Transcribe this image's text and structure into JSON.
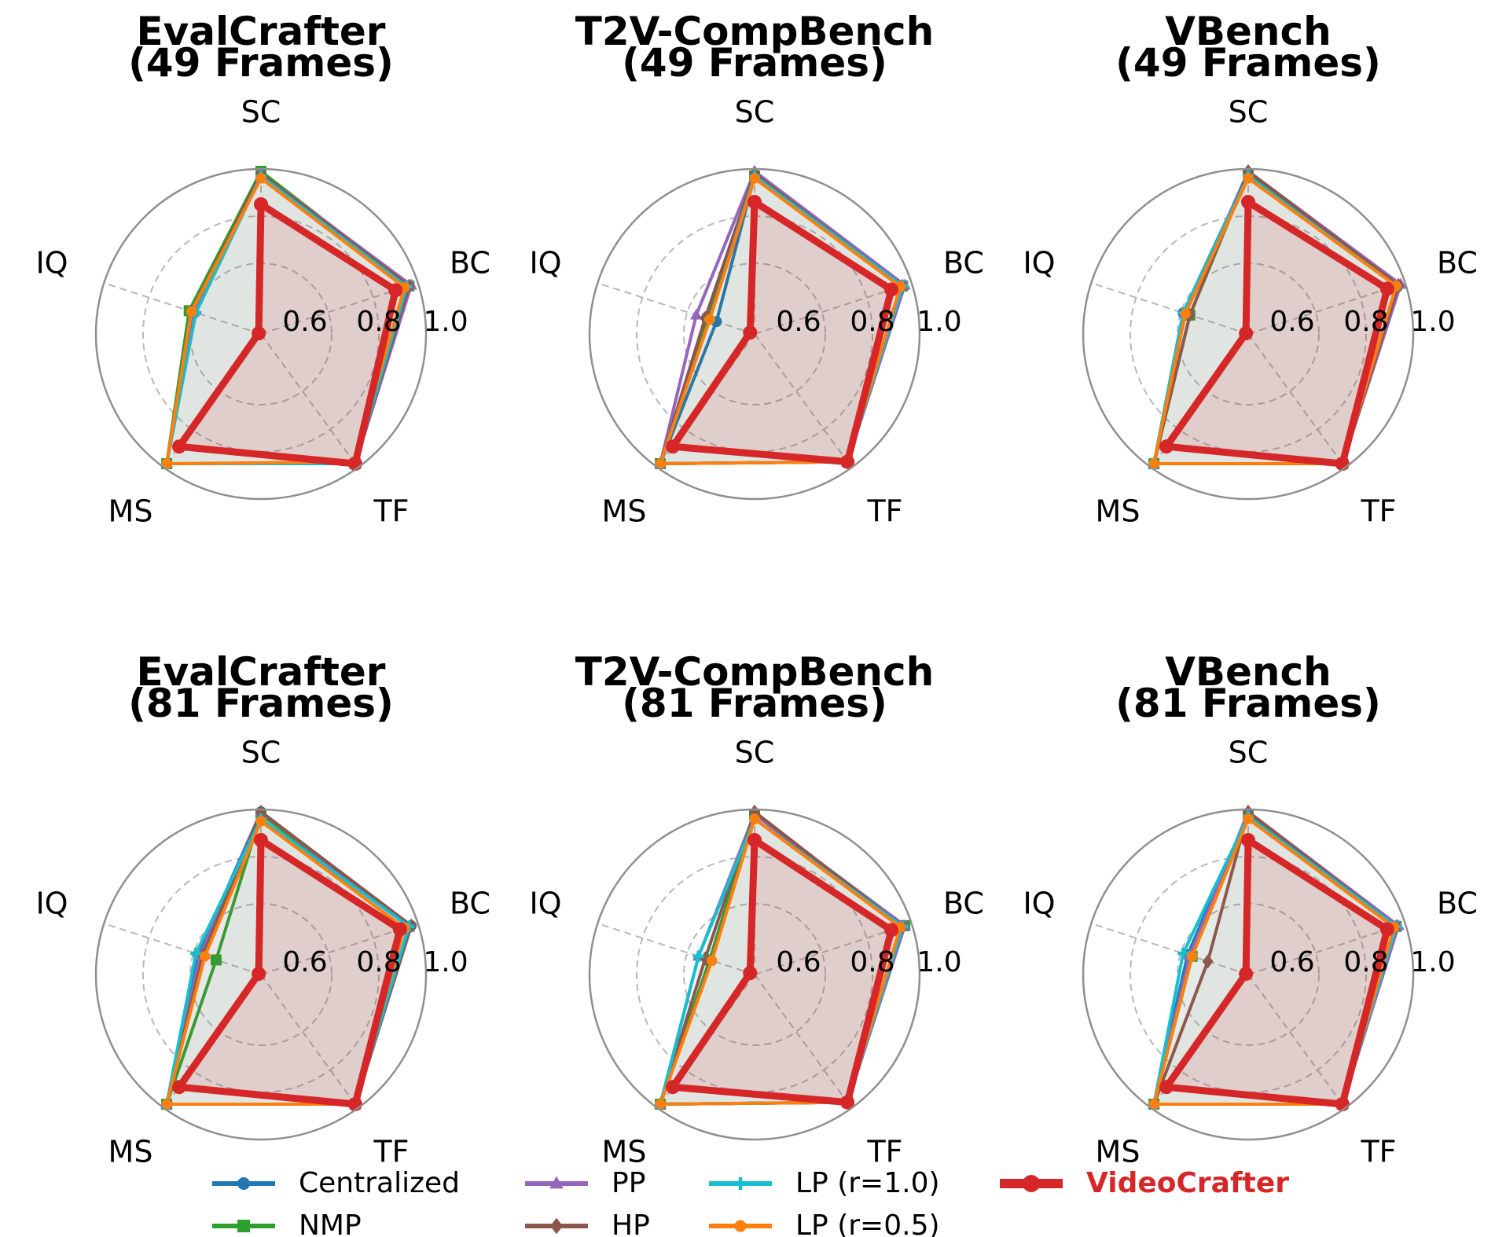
{
  "chart_data": [
    {
      "type": "radar",
      "title": "EvalCrafter\n(49 Frames)",
      "axes": [
        "SC",
        "BC",
        "TF",
        "MS",
        "IQ"
      ],
      "rlim": [
        0.3,
        1.0
      ],
      "rticks": [
        "0.6",
        "0.8",
        "1.0"
      ],
      "series": [
        {
          "name": "Centralized",
          "values": [
            0.98,
            0.96,
            0.98,
            0.98,
            0.6
          ]
        },
        {
          "name": "NMP",
          "values": [
            0.99,
            0.96,
            0.98,
            0.98,
            0.62
          ]
        },
        {
          "name": "PP",
          "values": [
            0.98,
            0.97,
            0.98,
            0.98,
            0.6
          ]
        },
        {
          "name": "HP",
          "values": [
            0.98,
            0.96,
            0.98,
            0.98,
            0.61
          ]
        },
        {
          "name": "LP (r=1.0)",
          "values": [
            0.97,
            0.95,
            0.98,
            0.98,
            0.59
          ]
        },
        {
          "name": "LP (r=0.5)",
          "values": [
            0.96,
            0.94,
            0.97,
            0.98,
            0.61
          ]
        },
        {
          "name": "VideoCrafter",
          "values": [
            0.85,
            0.9,
            0.98,
            0.89,
            0.31
          ]
        }
      ]
    },
    {
      "type": "radar",
      "title": "T2V-CompBench\n(49 Frames)",
      "axes": [
        "SC",
        "BC",
        "TF",
        "MS",
        "IQ"
      ],
      "rlim": [
        0.3,
        1.0
      ],
      "rticks": [
        "0.6",
        "0.8",
        "1.0"
      ],
      "series": [
        {
          "name": "Centralized",
          "values": [
            0.97,
            0.96,
            0.97,
            0.98,
            0.47
          ]
        },
        {
          "name": "NMP",
          "values": [
            0.97,
            0.96,
            0.97,
            0.98,
            0.51
          ]
        },
        {
          "name": "PP",
          "values": [
            0.99,
            0.97,
            0.97,
            0.98,
            0.56
          ]
        },
        {
          "name": "HP",
          "values": [
            0.98,
            0.96,
            0.97,
            0.98,
            0.52
          ]
        },
        {
          "name": "LP (r=1.0)",
          "values": [
            0.97,
            0.96,
            0.97,
            0.98,
            0.5
          ]
        },
        {
          "name": "LP (r=0.5)",
          "values": [
            0.96,
            0.95,
            0.97,
            0.98,
            0.5
          ]
        },
        {
          "name": "VideoCrafter",
          "values": [
            0.86,
            0.91,
            0.97,
            0.89,
            0.32
          ]
        }
      ]
    },
    {
      "type": "radar",
      "title": "VBench\n(49 Frames)",
      "axes": [
        "SC",
        "BC",
        "TF",
        "MS",
        "IQ"
      ],
      "rlim": [
        0.3,
        1.0
      ],
      "rticks": [
        "0.6",
        "0.8",
        "1.0"
      ],
      "series": [
        {
          "name": "Centralized",
          "values": [
            0.98,
            0.97,
            0.98,
            0.98,
            0.59
          ]
        },
        {
          "name": "NMP",
          "values": [
            0.98,
            0.96,
            0.98,
            0.98,
            0.56
          ]
        },
        {
          "name": "PP",
          "values": [
            0.99,
            0.98,
            0.98,
            0.98,
            0.58
          ]
        },
        {
          "name": "HP",
          "values": [
            0.99,
            0.97,
            0.98,
            0.98,
            0.56
          ]
        },
        {
          "name": "LP (r=1.0)",
          "values": [
            0.97,
            0.96,
            0.98,
            0.98,
            0.59
          ]
        },
        {
          "name": "LP (r=0.5)",
          "values": [
            0.96,
            0.96,
            0.98,
            0.98,
            0.58
          ]
        },
        {
          "name": "VideoCrafter",
          "values": [
            0.86,
            0.92,
            0.98,
            0.89,
            0.31
          ]
        }
      ]
    },
    {
      "type": "radar",
      "title": "EvalCrafter\n(81 Frames)",
      "axes": [
        "SC",
        "BC",
        "TF",
        "MS",
        "IQ"
      ],
      "rlim": [
        0.3,
        1.0
      ],
      "rticks": [
        "0.6",
        "0.8",
        "1.0"
      ],
      "series": [
        {
          "name": "Centralized",
          "values": [
            0.99,
            0.97,
            0.98,
            0.98,
            0.58
          ]
        },
        {
          "name": "NMP",
          "values": [
            0.98,
            0.96,
            0.98,
            0.98,
            0.5
          ]
        },
        {
          "name": "PP",
          "values": [
            0.99,
            0.96,
            0.98,
            0.98,
            0.57
          ]
        },
        {
          "name": "HP",
          "values": [
            0.99,
            0.97,
            0.98,
            0.98,
            0.56
          ]
        },
        {
          "name": "LP (r=1.0)",
          "values": [
            0.96,
            0.96,
            0.98,
            0.98,
            0.59
          ]
        },
        {
          "name": "LP (r=0.5)",
          "values": [
            0.95,
            0.94,
            0.98,
            0.98,
            0.55
          ]
        },
        {
          "name": "VideoCrafter",
          "values": [
            0.87,
            0.92,
            0.98,
            0.89,
            0.31
          ]
        }
      ]
    },
    {
      "type": "radar",
      "title": "T2V-CompBench\n(81 Frames)",
      "axes": [
        "SC",
        "BC",
        "TF",
        "MS",
        "IQ"
      ],
      "rlim": [
        0.3,
        1.0
      ],
      "rticks": [
        "0.6",
        "0.8",
        "1.0"
      ],
      "series": [
        {
          "name": "Centralized",
          "values": [
            0.98,
            0.96,
            0.97,
            0.98,
            0.5
          ]
        },
        {
          "name": "NMP",
          "values": [
            0.98,
            0.97,
            0.97,
            0.98,
            0.5
          ]
        },
        {
          "name": "PP",
          "values": [
            0.98,
            0.97,
            0.97,
            0.98,
            0.55
          ]
        },
        {
          "name": "HP",
          "values": [
            0.99,
            0.96,
            0.97,
            0.98,
            0.52
          ]
        },
        {
          "name": "LP (r=1.0)",
          "values": [
            0.96,
            0.96,
            0.97,
            0.98,
            0.55
          ]
        },
        {
          "name": "LP (r=0.5)",
          "values": [
            0.96,
            0.95,
            0.97,
            0.98,
            0.49
          ]
        },
        {
          "name": "VideoCrafter",
          "values": [
            0.87,
            0.91,
            0.97,
            0.89,
            0.32
          ]
        }
      ]
    },
    {
      "type": "radar",
      "title": "VBench\n(81 Frames)",
      "axes": [
        "SC",
        "BC",
        "TF",
        "MS",
        "IQ"
      ],
      "rlim": [
        0.3,
        1.0
      ],
      "rticks": [
        "0.6",
        "0.8",
        "1.0"
      ],
      "series": [
        {
          "name": "Centralized",
          "values": [
            0.98,
            0.96,
            0.98,
            0.98,
            0.57
          ]
        },
        {
          "name": "NMP",
          "values": [
            0.98,
            0.96,
            0.98,
            0.98,
            0.55
          ]
        },
        {
          "name": "PP",
          "values": [
            0.99,
            0.97,
            0.98,
            0.98,
            0.56
          ]
        },
        {
          "name": "HP",
          "values": [
            0.99,
            0.96,
            0.98,
            0.98,
            0.48
          ]
        },
        {
          "name": "LP (r=1.0)",
          "values": [
            0.97,
            0.96,
            0.98,
            0.98,
            0.59
          ]
        },
        {
          "name": "LP (r=0.5)",
          "values": [
            0.96,
            0.95,
            0.98,
            0.98,
            0.55
          ]
        },
        {
          "name": "VideoCrafter",
          "values": [
            0.87,
            0.92,
            0.98,
            0.89,
            0.31
          ]
        }
      ]
    }
  ],
  "legend": {
    "position": "bottom",
    "entries": [
      {
        "name": "Centralized",
        "color": "#1f77b4",
        "marker": "circle"
      },
      {
        "name": "NMP",
        "color": "#2ca02c",
        "marker": "square"
      },
      {
        "name": "PP",
        "color": "#9467bd",
        "marker": "triangle"
      },
      {
        "name": "HP",
        "color": "#8c564b",
        "marker": "diamond"
      },
      {
        "name": "LP (r=1.0)",
        "color": "#17becf",
        "marker": "plus"
      },
      {
        "name": "LP (r=0.5)",
        "color": "#ff7f0e",
        "marker": "octagon"
      },
      {
        "name": "VideoCrafter",
        "color": "#d62728",
        "marker": "circle",
        "highlight": true
      }
    ]
  }
}
